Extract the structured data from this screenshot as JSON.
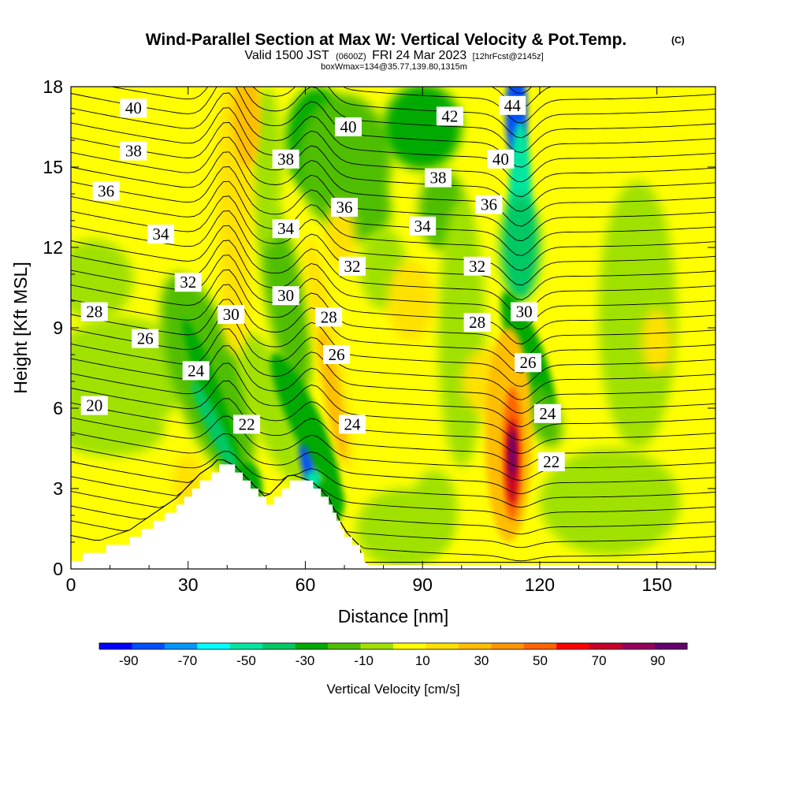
{
  "title": {
    "main": "Wind-Parallel Section at Max W: Vertical Velocity & Pot.Temp.",
    "copyright": "(C)",
    "line2_a": "Valid 1500 JST",
    "line2_b": "(0600Z)",
    "line2_c": "FRI 24 Mar 2023",
    "line2_d": "[12hrFcst@2145z]",
    "line3": "boxWmax=134@35.77,139.80,1315m"
  },
  "chart_data": {
    "type": "heatmap",
    "xlabel": "Distance [nm]",
    "ylabel": "Height [Kft MSL]",
    "xlim": [
      0,
      165
    ],
    "ylim": [
      0,
      18
    ],
    "x_ticks": [
      "0",
      "30",
      "60",
      "90",
      "120",
      "150"
    ],
    "y_ticks": [
      "0",
      "3",
      "6",
      "9",
      "12",
      "15",
      "18"
    ],
    "field": "Vertical Velocity",
    "overlay_field": "Potential temperature contours",
    "colorbar": {
      "label": "Vertical Velocity [cm/s]",
      "tick_labels": [
        "-90",
        "-70",
        "-50",
        "-30",
        "-10",
        "10",
        "30",
        "50",
        "70",
        "90"
      ],
      "range": [
        -100,
        100
      ],
      "colors": [
        "#0000ff",
        "#0050ff",
        "#0096ff",
        "#00ffff",
        "#00e6a0",
        "#00c864",
        "#00aa00",
        "#50be00",
        "#a0e100",
        "#ffff00",
        "#ffe100",
        "#ffbe00",
        "#ff9600",
        "#ff6400",
        "#ff0000",
        "#c80028",
        "#96005a",
        "#64006e"
      ]
    },
    "background_color": "#ffff00",
    "features": [
      {
        "kind": "updraft",
        "x_center": 113,
        "y_bottom": 1.5,
        "y_top": 7,
        "peak_value": 97
      },
      {
        "kind": "downdraft",
        "x_center": 61,
        "y_bottom": 3.0,
        "y_top": 4.5,
        "peak_value": -80
      },
      {
        "kind": "downdraft",
        "x_center": 115,
        "y_bottom": 10.5,
        "y_top": 18,
        "peak_value": -75
      },
      {
        "kind": "downdraft",
        "x_center": 36,
        "y_bottom": 4,
        "y_top": 9,
        "peak_value": -30
      },
      {
        "kind": "updraft",
        "x_center": 43,
        "y_bottom": 9,
        "y_top": 18,
        "peak_value": 25
      }
    ],
    "terrain_nm_kft": [
      [
        0,
        0.3
      ],
      [
        3,
        0.6
      ],
      [
        9,
        0.9
      ],
      [
        15,
        1.2
      ],
      [
        18,
        1.5
      ],
      [
        21,
        1.8
      ],
      [
        24,
        2.1
      ],
      [
        27,
        2.4
      ],
      [
        29,
        2.7
      ],
      [
        31,
        3.0
      ],
      [
        33,
        3.3
      ],
      [
        36,
        3.6
      ],
      [
        38,
        3.9
      ],
      [
        42,
        3.6
      ],
      [
        44,
        3.3
      ],
      [
        46,
        3.0
      ],
      [
        48,
        2.7
      ],
      [
        50,
        2.4
      ],
      [
        52,
        2.7
      ],
      [
        54,
        3.0
      ],
      [
        56,
        3.3
      ],
      [
        62,
        3.0
      ],
      [
        64,
        2.7
      ],
      [
        66,
        2.4
      ],
      [
        67,
        2.1
      ],
      [
        68,
        1.8
      ],
      [
        69,
        1.5
      ],
      [
        70,
        1.2
      ],
      [
        72,
        0.9
      ],
      [
        74,
        0.6
      ],
      [
        75,
        0.3
      ]
    ],
    "contour_labels": [
      {
        "text": "40",
        "x": 16,
        "y": 17.2
      },
      {
        "text": "38",
        "x": 16,
        "y": 15.6
      },
      {
        "text": "36",
        "x": 9,
        "y": 14.1
      },
      {
        "text": "34",
        "x": 23,
        "y": 12.5
      },
      {
        "text": "32",
        "x": 30,
        "y": 10.7
      },
      {
        "text": "30",
        "x": 41,
        "y": 9.5
      },
      {
        "text": "28",
        "x": 6,
        "y": 9.6
      },
      {
        "text": "26",
        "x": 19,
        "y": 8.6
      },
      {
        "text": "24",
        "x": 32,
        "y": 7.4
      },
      {
        "text": "22",
        "x": 45,
        "y": 5.4
      },
      {
        "text": "20",
        "x": 6,
        "y": 6.1
      },
      {
        "text": "38",
        "x": 55,
        "y": 15.3
      },
      {
        "text": "34",
        "x": 55,
        "y": 12.7
      },
      {
        "text": "30",
        "x": 55,
        "y": 10.2
      },
      {
        "text": "40",
        "x": 71,
        "y": 16.5
      },
      {
        "text": "36",
        "x": 70,
        "y": 13.5
      },
      {
        "text": "32",
        "x": 72,
        "y": 11.3
      },
      {
        "text": "28",
        "x": 66,
        "y": 9.4
      },
      {
        "text": "26",
        "x": 68,
        "y": 8.0
      },
      {
        "text": "24",
        "x": 72,
        "y": 5.4
      },
      {
        "text": "42",
        "x": 97,
        "y": 16.9
      },
      {
        "text": "38",
        "x": 94,
        "y": 14.6
      },
      {
        "text": "34",
        "x": 90,
        "y": 12.8
      },
      {
        "text": "32",
        "x": 104,
        "y": 11.3
      },
      {
        "text": "28",
        "x": 104,
        "y": 9.2
      },
      {
        "text": "44",
        "x": 113,
        "y": 17.3
      },
      {
        "text": "40",
        "x": 110,
        "y": 15.3
      },
      {
        "text": "36",
        "x": 107,
        "y": 13.6
      },
      {
        "text": "30",
        "x": 116,
        "y": 9.6
      },
      {
        "text": "26",
        "x": 117,
        "y": 7.7
      },
      {
        "text": "24",
        "x": 122,
        "y": 5.8
      },
      {
        "text": "22",
        "x": 123,
        "y": 4.0
      }
    ]
  }
}
